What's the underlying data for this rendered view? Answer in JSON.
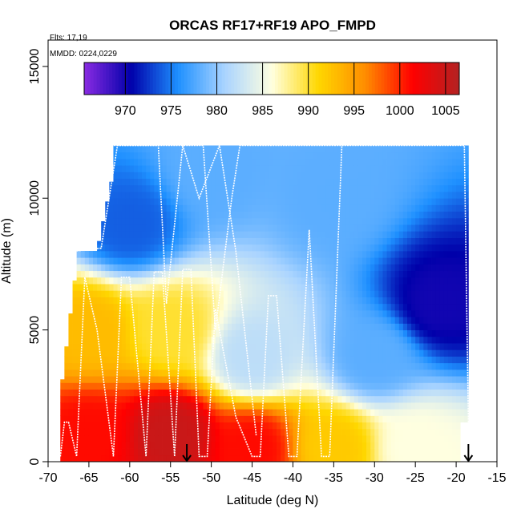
{
  "chart_data": {
    "type": "heatmap",
    "title": "ORCAS RF17+RF19 APO_FMPD",
    "xlabel": "Latitude (deg N)",
    "ylabel": "Altitude (m)",
    "xlim": [
      -70,
      -15
    ],
    "ylim": [
      0,
      16000
    ],
    "x_ticks": [
      -70,
      -65,
      -60,
      -55,
      -50,
      -45,
      -40,
      -35,
      -30,
      -25,
      -20,
      -15
    ],
    "y_ticks": [
      0,
      5000,
      10000,
      15000
    ],
    "notes": {
      "flights": "Flts: 17,19",
      "dates": "MMDD: 0224,0229"
    },
    "colorbar": {
      "range": [
        965.5,
        1006.5
      ],
      "ticks": [
        970,
        975,
        980,
        985,
        990,
        995,
        1000,
        1005
      ],
      "colors": [
        "#8a2be2",
        "#0000aa",
        "#1e90ff",
        "#aad4ff",
        "#ffffe0",
        "#ffd700",
        "#ff8c00",
        "#ff0000",
        "#b22222"
      ]
    },
    "field": {
      "description_points": [
        {
          "lat": -65,
          "alt": 1000,
          "value": 1001
        },
        {
          "lat": -55,
          "alt": 1000,
          "value": 1005
        },
        {
          "lat": -45,
          "alt": 500,
          "value": 1001
        },
        {
          "lat": -35,
          "alt": 500,
          "value": 992
        },
        {
          "lat": -25,
          "alt": 500,
          "value": 986
        },
        {
          "lat": -65,
          "alt": 5000,
          "value": 993
        },
        {
          "lat": -55,
          "alt": 5000,
          "value": 990
        },
        {
          "lat": -45,
          "alt": 4000,
          "value": 982
        },
        {
          "lat": -30,
          "alt": 4000,
          "value": 978
        },
        {
          "lat": -22,
          "alt": 6000,
          "value": 970
        },
        {
          "lat": -60,
          "alt": 9000,
          "value": 974
        },
        {
          "lat": -50,
          "alt": 11000,
          "value": 978
        },
        {
          "lat": -35,
          "alt": 10000,
          "value": 978
        }
      ]
    },
    "arrows": [
      -53,
      -18.5
    ],
    "flight_tracks": [
      {
        "name": "track-1",
        "points": [
          [
            -68.5,
            200
          ],
          [
            -68,
            1500
          ],
          [
            -67.5,
            1500
          ],
          [
            -66.5,
            200
          ],
          [
            -65.5,
            7000
          ],
          [
            -64,
            5000
          ],
          [
            -62,
            200
          ],
          [
            -61,
            7000
          ],
          [
            -60,
            7000
          ],
          [
            -58,
            200
          ],
          [
            -57,
            7200
          ],
          [
            -56,
            7200
          ],
          [
            -54.5,
            200
          ],
          [
            -53.5,
            7300
          ],
          [
            -52.5,
            7300
          ],
          [
            -51.5,
            200
          ],
          [
            -50.5,
            200
          ],
          [
            -49.5,
            5800
          ],
          [
            -47,
            1700
          ],
          [
            -45,
            200
          ],
          [
            -44,
            200
          ],
          [
            -43,
            6300
          ],
          [
            -42,
            6300
          ],
          [
            -40.5,
            200
          ],
          [
            -39.5,
            200
          ],
          [
            -38,
            8800
          ],
          [
            -36.5,
            200
          ],
          [
            -35.5,
            200
          ],
          [
            -34,
            12000
          ]
        ]
      },
      {
        "name": "track-2",
        "points": [
          [
            -66.5,
            8000
          ],
          [
            -63.5,
            8100
          ],
          [
            -61.5,
            12000
          ],
          [
            -55,
            12000
          ],
          [
            -51,
            12000
          ],
          [
            -49.5,
            5000
          ],
          [
            -47.5,
            10000
          ],
          [
            -46.5,
            12000
          ],
          [
            -30,
            12000
          ],
          [
            -19,
            12000
          ],
          [
            -18.5,
            1500
          ]
        ]
      },
      {
        "name": "track-3",
        "points": [
          [
            -63.5,
            12000
          ],
          [
            -61,
            12000
          ],
          [
            -58,
            12000
          ],
          [
            -56.5,
            12000
          ],
          [
            -55.5,
            6000
          ],
          [
            -53.5,
            12000
          ],
          [
            -51.5,
            10000
          ],
          [
            -49,
            12000
          ],
          [
            -47,
            8000
          ],
          [
            -44.5,
            1000
          ]
        ]
      }
    ]
  }
}
